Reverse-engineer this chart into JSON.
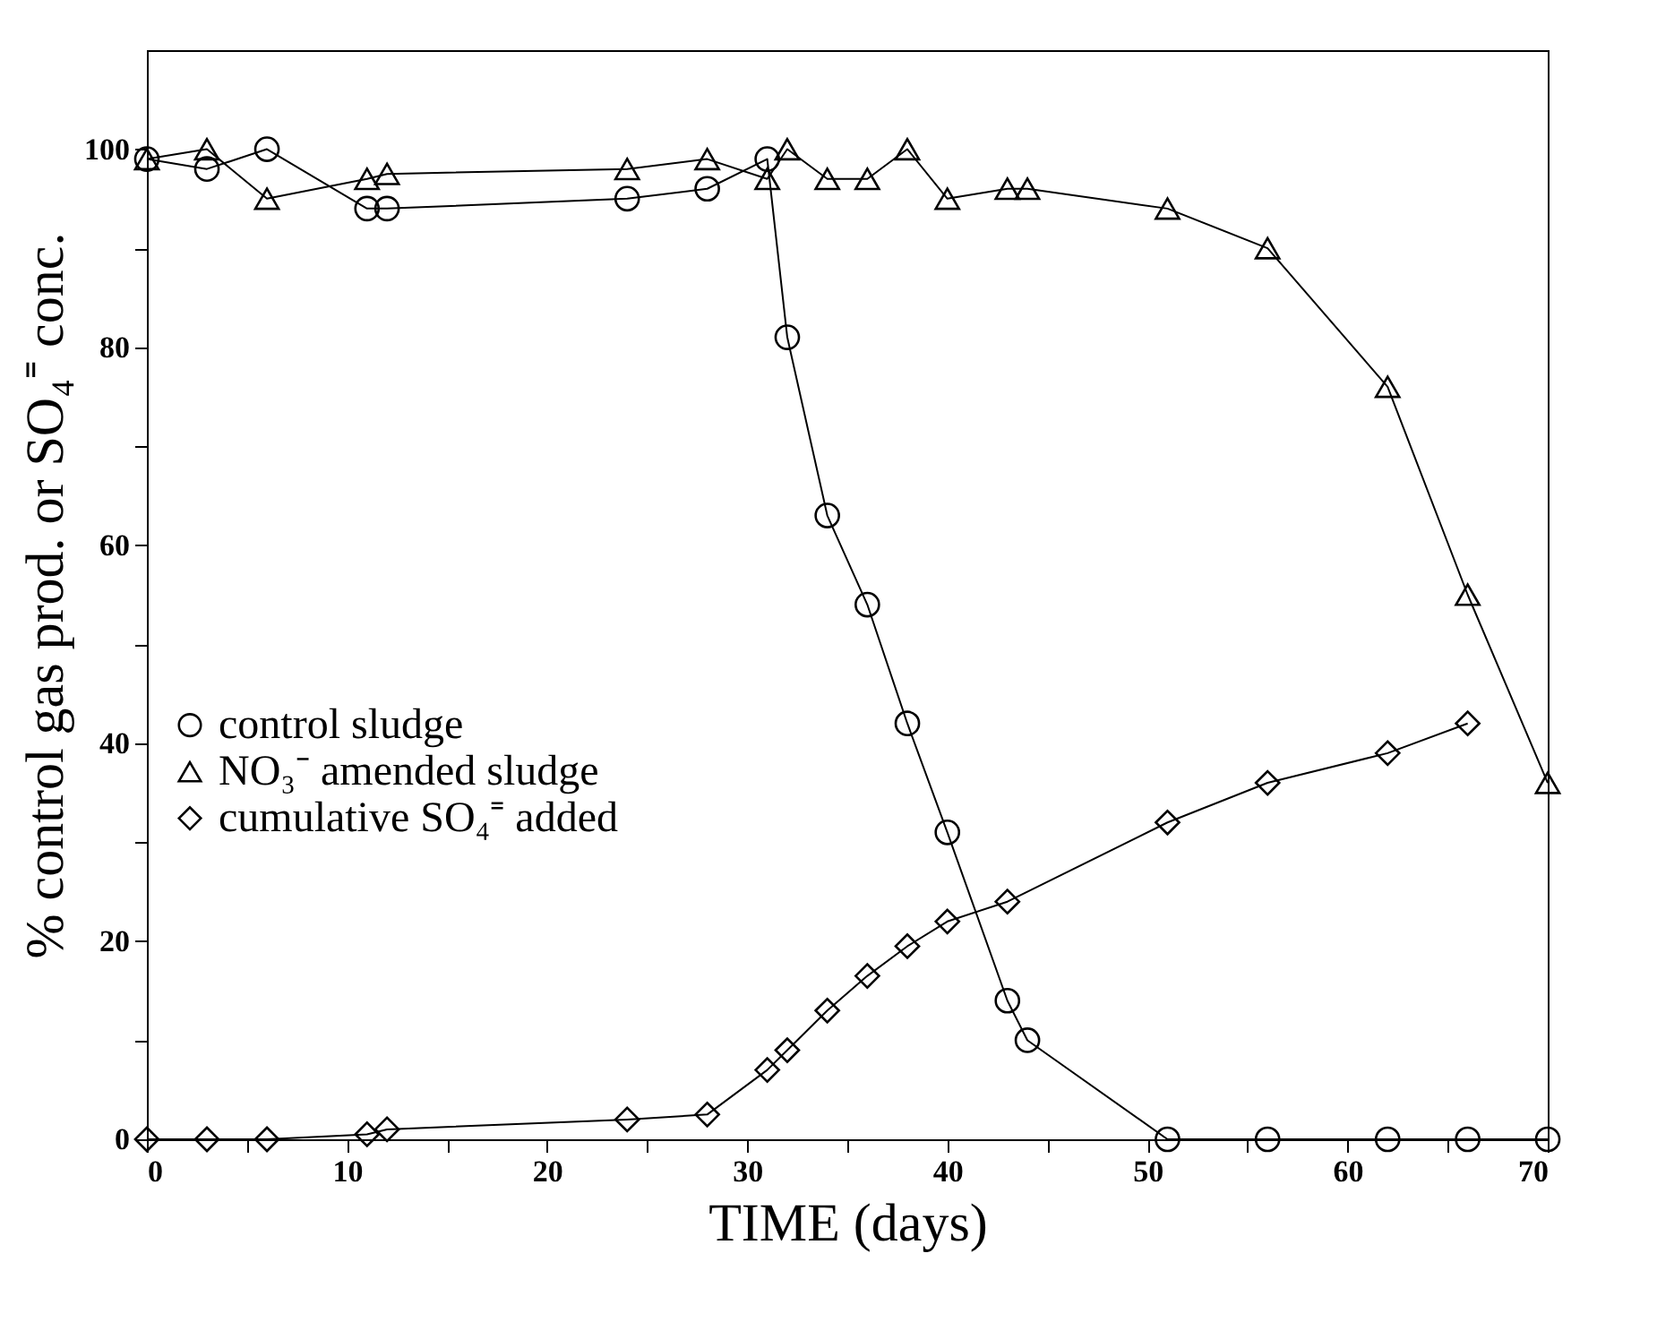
{
  "chart_data": {
    "type": "line",
    "xlabel": "TIME (days)",
    "ylabel": "% control gas prod. or SO₄⁼ conc.",
    "xlim": [
      0,
      70
    ],
    "ylim": [
      0,
      110
    ],
    "xticks": [
      0,
      {
        "value": 5,
        "label": null
      },
      10,
      {
        "value": 15,
        "label": null
      },
      20,
      {
        "value": 25,
        "label": null
      },
      30,
      {
        "value": 35,
        "label": null
      },
      40,
      {
        "value": 45,
        "label": null
      },
      50,
      {
        "value": 55,
        "label": null
      },
      60,
      {
        "value": 65,
        "label": null
      },
      70
    ],
    "yticks": [
      0,
      {
        "value": 10,
        "label": null
      },
      20,
      {
        "value": 30,
        "label": null
      },
      40,
      {
        "value": 50,
        "label": null
      },
      60,
      {
        "value": 70,
        "label": null
      },
      80,
      {
        "value": 90,
        "label": null
      },
      100
    ],
    "grid": false,
    "legend": "left",
    "line_style": "solid",
    "series": [
      {
        "name": "control sludge",
        "color": "#000000",
        "marker": "circle",
        "x": [
          0,
          3,
          6,
          11,
          12,
          24,
          28,
          31,
          32,
          34,
          36,
          38,
          40,
          43,
          44,
          51,
          56,
          62,
          66,
          70
        ],
        "values": [
          99,
          98,
          100,
          94,
          94,
          95,
          96,
          99,
          81,
          63,
          54,
          42,
          31,
          14,
          10,
          0,
          0,
          0,
          0,
          0
        ]
      },
      {
        "name": "NO₃⁻ amended sludge",
        "color": "#000000",
        "marker": "triangle",
        "x": [
          0,
          3,
          6,
          11,
          12,
          24,
          28,
          31,
          32,
          34,
          36,
          38,
          40,
          43,
          44,
          51,
          56,
          62,
          66,
          70
        ],
        "values": [
          99,
          100,
          95,
          97,
          97.5,
          98,
          99,
          97,
          100,
          97,
          97,
          100,
          95,
          96,
          96,
          94,
          90,
          76,
          55,
          36
        ]
      },
      {
        "name": "cumulative SO₄⁼ added",
        "color": "#000000",
        "marker": "diamond",
        "x": [
          0,
          3,
          6,
          11,
          12,
          24,
          28,
          31,
          32,
          34,
          36,
          38,
          40,
          43,
          51,
          56,
          62,
          66
        ],
        "values": [
          0,
          0,
          0,
          0.5,
          1,
          2,
          2.5,
          7,
          9,
          13,
          16.5,
          19.5,
          22,
          24,
          32,
          36,
          39,
          42
        ]
      }
    ]
  }
}
